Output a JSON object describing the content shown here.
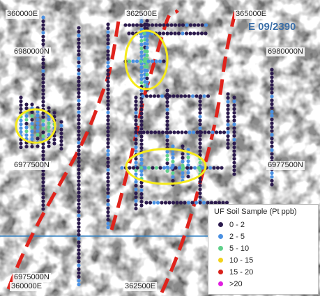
{
  "map": {
    "tenement_label": "E 09/2390",
    "grid_labels": {
      "top_e1": "360000E",
      "top_e2": "362500E",
      "top_e3": "365000E",
      "n_left_upper": "6980000N",
      "n_right_upper": "6980000N",
      "n_left_mid": "6977500N",
      "n_right_mid": "6977500N",
      "n_left_lower": "6975000N",
      "bottom_e1": "360000E",
      "bottom_e2": "362500E"
    }
  },
  "legend": {
    "title": "UF Soil Sample (Pt ppb)",
    "items": [
      {
        "label": "0 - 2",
        "color": "#2b1a4d"
      },
      {
        "label": "2 - 5",
        "color": "#4a90e2"
      },
      {
        "label": "5 - 10",
        "color": "#5fd08a"
      },
      {
        "label": "10 - 15",
        "color": "#f2d21b"
      },
      {
        "label": "15 - 20",
        "color": "#d9211b"
      },
      {
        "label": ">20",
        "color": "#e01ee0"
      }
    ]
  },
  "colors": {
    "structure_line": "#e0231c",
    "highlight_ellipse": "#f5ea1a",
    "northing_line": "#2f7fc1"
  }
}
